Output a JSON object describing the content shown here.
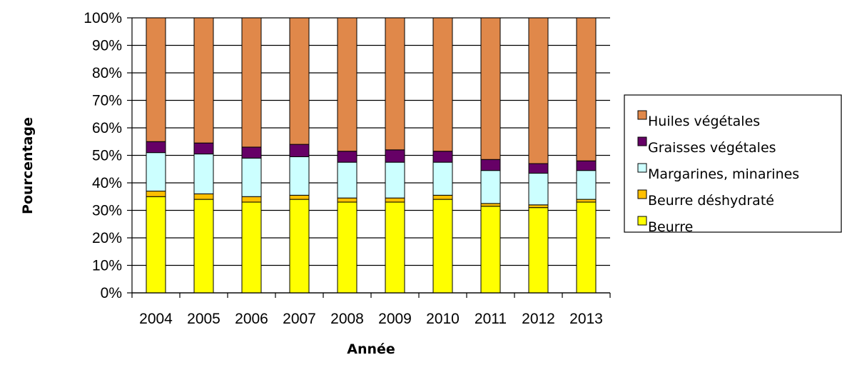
{
  "chart_data": {
    "type": "bar",
    "stacked": true,
    "percent": true,
    "title": "",
    "xlabel": "Année",
    "ylabel": "Pourcentage",
    "ylim": [
      0,
      100
    ],
    "yticks": [
      "0%",
      "10%",
      "20%",
      "30%",
      "40%",
      "50%",
      "60%",
      "70%",
      "80%",
      "90%",
      "100%"
    ],
    "grid": true,
    "legend_position": "right",
    "categories": [
      "2004",
      "2005",
      "2006",
      "2007",
      "2008",
      "2009",
      "2010",
      "2011",
      "2012",
      "2013"
    ],
    "series": [
      {
        "name": "Beurre",
        "color": "#ffff00",
        "values": [
          35,
          34,
          33,
          34,
          33,
          33,
          34,
          31.5,
          31,
          33
        ]
      },
      {
        "name": "Beurre déshydraté",
        "color": "#ffc000",
        "values": [
          2,
          2,
          2,
          1.5,
          1.5,
          1.5,
          1.5,
          1,
          1,
          1
        ]
      },
      {
        "name": "Margarines, minarines",
        "color": "#ccffff",
        "values": [
          14,
          14.5,
          14,
          14,
          13,
          13,
          12,
          12,
          11.5,
          10.5
        ]
      },
      {
        "name": "Graisses végétales",
        "color": "#660066",
        "values": [
          4,
          4,
          4,
          4.5,
          4,
          4.5,
          4,
          4,
          3.5,
          3.5
        ]
      },
      {
        "name": "Huiles végétales",
        "color": "#e0884a",
        "values": [
          45,
          45.5,
          47,
          46,
          48.5,
          48,
          48.5,
          51.5,
          53,
          52
        ]
      }
    ]
  }
}
